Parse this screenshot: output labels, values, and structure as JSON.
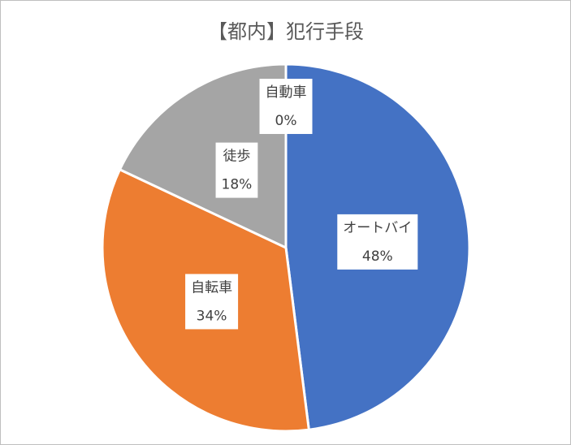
{
  "chart_data": {
    "type": "pie",
    "title": "【都内】犯行手段",
    "categories": [
      "オートバイ",
      "自転車",
      "徒歩",
      "自動車"
    ],
    "values": [
      48,
      34,
      18,
      0
    ],
    "value_labels": [
      "48%",
      "34%",
      "18%",
      "0%"
    ],
    "colors": [
      "#4472c4",
      "#ed7d31",
      "#a5a5a5",
      "#ffc000"
    ]
  }
}
